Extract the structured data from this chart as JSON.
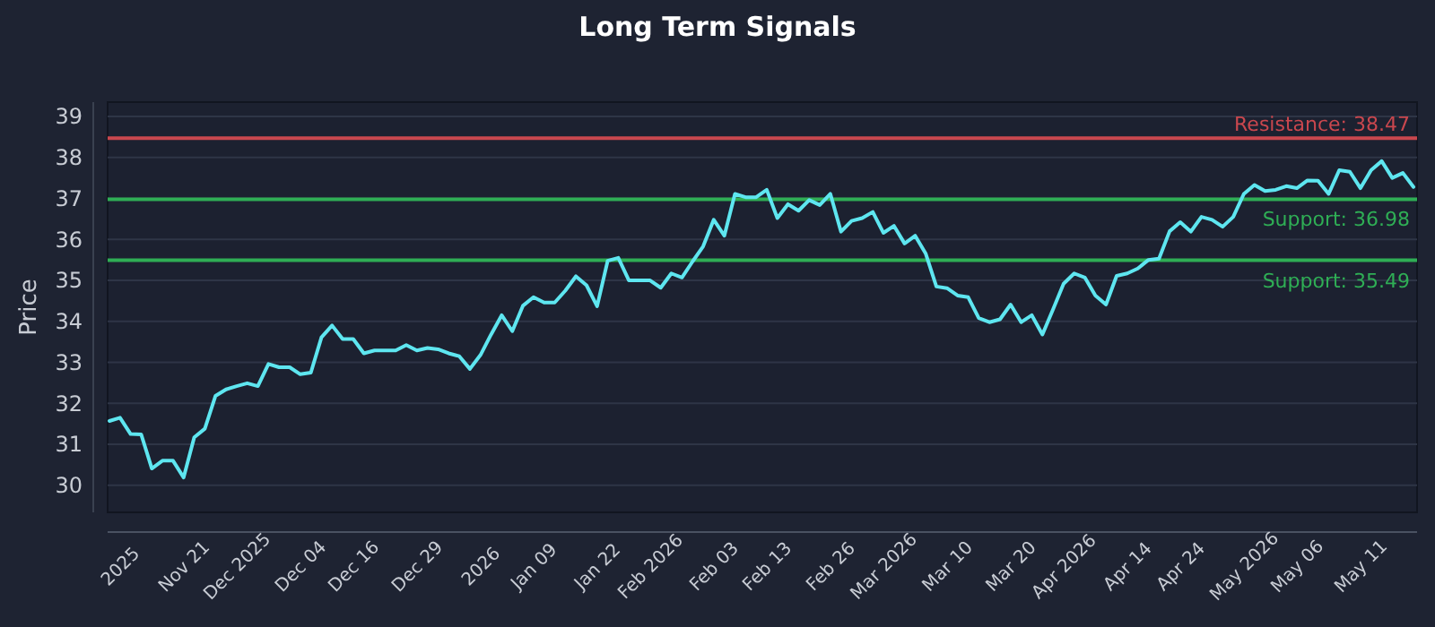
{
  "chart_data": {
    "type": "line",
    "title": "Long Term Signals",
    "ylabel": "Price",
    "categories": [
      null,
      "2025",
      null,
      null,
      null,
      null,
      null,
      "Nov 21",
      null,
      null,
      null,
      null,
      "Dec 2025",
      null,
      null,
      null,
      null,
      null,
      "Dec 04",
      null,
      null,
      null,
      null,
      "Dec 16",
      null,
      null,
      null,
      null,
      null,
      "Dec 29",
      null,
      null,
      null,
      null,
      null,
      "2026",
      null,
      null,
      null,
      null,
      "Jan 09",
      null,
      null,
      null,
      null,
      null,
      "Jan 22",
      null,
      null,
      null,
      null,
      "Feb 2026",
      null,
      null,
      null,
      null,
      null,
      "Feb 03",
      null,
      null,
      null,
      null,
      "Feb 13",
      null,
      null,
      null,
      null,
      null,
      "Feb 26",
      null,
      null,
      null,
      null,
      "Mar 2026",
      null,
      null,
      null,
      null,
      null,
      "Mar 10",
      null,
      null,
      null,
      null,
      null,
      "Mar 20",
      null,
      null,
      null,
      null,
      "Apr 2026",
      null,
      null,
      null,
      null,
      null,
      "Apr 14",
      null,
      null,
      null,
      null,
      "Apr 24",
      null,
      null,
      null,
      null,
      null,
      "May 2026",
      null,
      null,
      null,
      null,
      "May 06",
      null,
      null,
      null,
      null,
      null,
      "May 11",
      null,
      null,
      null,
      null,
      null
    ],
    "series": [
      {
        "color": "#5ee6f0",
        "values": [
          31.57,
          31.65,
          31.25,
          31.24,
          30.41,
          30.6,
          30.6,
          30.19,
          31.17,
          31.38,
          32.18,
          32.34,
          32.42,
          32.49,
          32.42,
          32.96,
          32.88,
          32.88,
          32.71,
          32.75,
          33.61,
          33.9,
          33.57,
          33.57,
          33.22,
          33.29,
          33.29,
          33.29,
          33.42,
          33.29,
          33.35,
          33.32,
          33.22,
          33.15,
          32.84,
          33.18,
          33.68,
          34.15,
          33.76,
          34.38,
          34.59,
          34.46,
          34.46,
          34.75,
          35.1,
          34.88,
          34.37,
          35.48,
          35.55,
          35.0,
          35.0,
          35.0,
          34.82,
          35.17,
          35.07,
          35.46,
          35.83,
          36.48,
          36.09,
          37.11,
          37.03,
          37.03,
          37.21,
          36.52,
          36.86,
          36.7,
          36.96,
          36.84,
          37.11,
          36.19,
          36.45,
          36.52,
          36.67,
          36.16,
          36.33,
          35.9,
          36.09,
          35.65,
          34.85,
          34.81,
          34.63,
          34.59,
          34.08,
          33.98,
          34.05,
          34.41,
          33.98,
          34.15,
          33.68,
          34.29,
          34.92,
          35.17,
          35.07,
          34.63,
          34.41,
          35.11,
          35.17,
          35.29,
          35.5,
          35.53,
          36.2,
          36.42,
          36.19,
          36.55,
          36.48,
          36.31,
          36.55,
          37.11,
          37.33,
          37.18,
          37.21,
          37.3,
          37.25,
          37.44,
          37.43,
          37.11,
          37.69,
          37.65,
          37.25,
          37.69,
          37.91,
          37.5,
          37.62,
          37.28
        ]
      }
    ],
    "ylim": [
      29.34,
      39.35
    ],
    "yticks": [
      30,
      31,
      32,
      33,
      34,
      35,
      36,
      37,
      38,
      39
    ],
    "grid": "y",
    "line_style": "solid",
    "marker": "none",
    "ref_lines": [
      {
        "axis": "y",
        "value": 38.47,
        "label": "Resistance: 38.47",
        "color": "#c9474e",
        "line_style": "solid"
      },
      {
        "axis": "y",
        "value": 36.98,
        "label": "Support: 36.98",
        "color": "#2fae55",
        "line_style": "solid"
      },
      {
        "axis": "y",
        "value": 35.49,
        "label": "Support: 35.49",
        "color": "#2fae55",
        "line_style": "solid"
      }
    ]
  }
}
